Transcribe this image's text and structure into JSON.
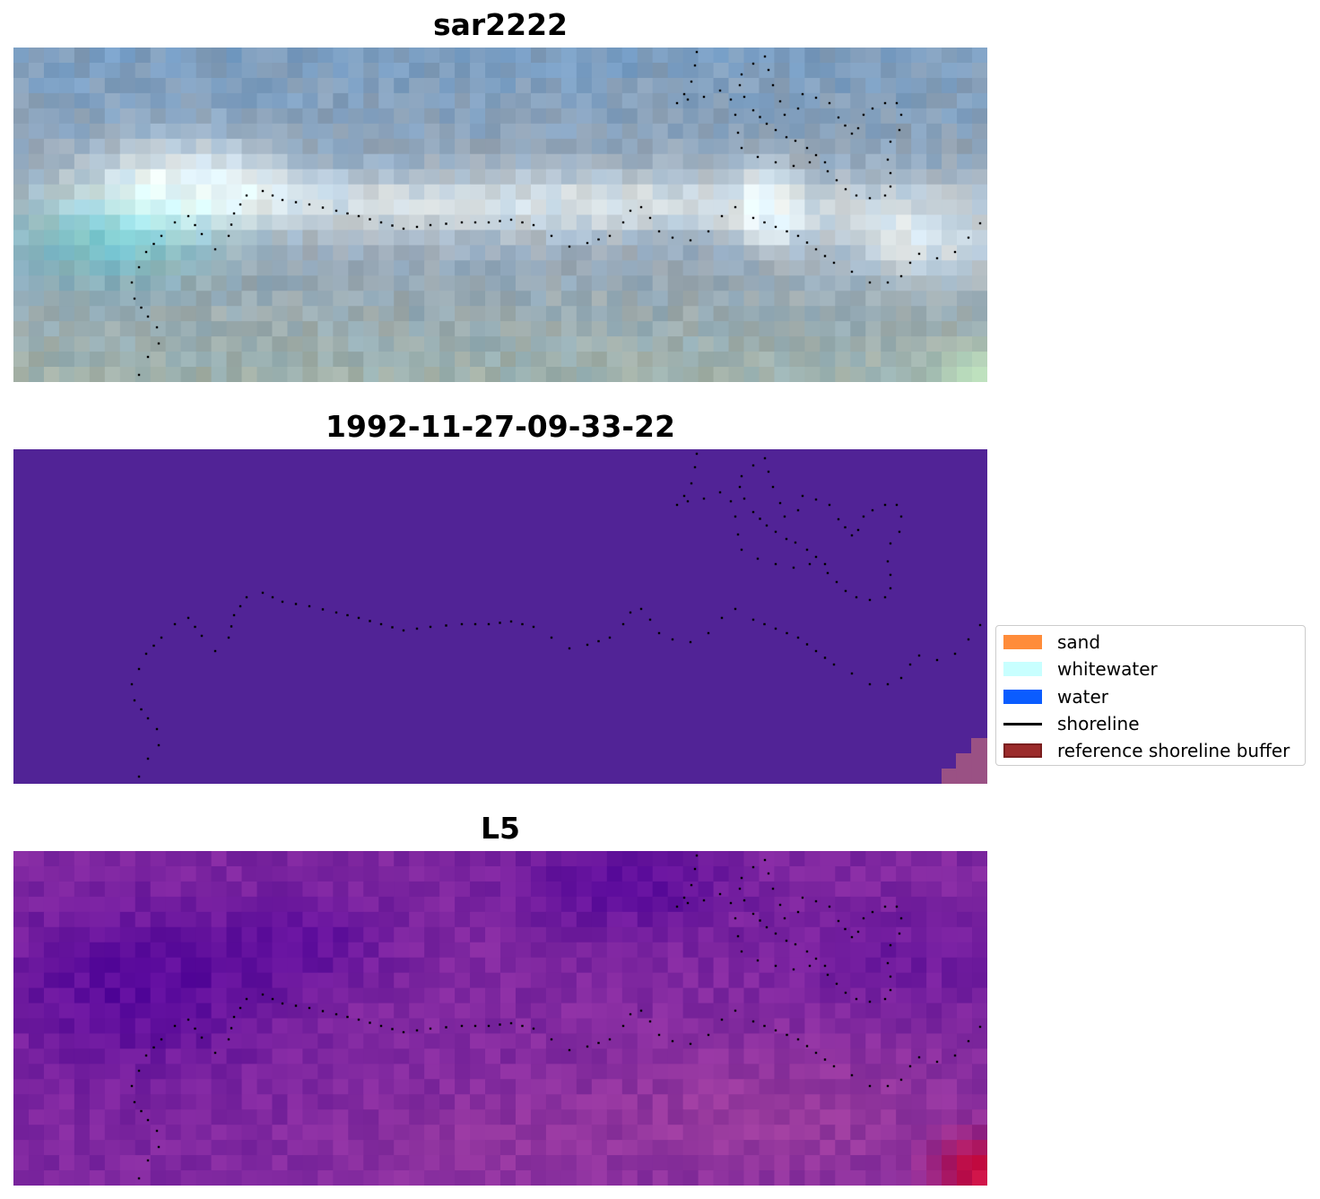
{
  "panels": [
    {
      "title": "sar2222",
      "kind": "rgb"
    },
    {
      "title": "1992-11-27-09-33-22",
      "kind": "classified"
    },
    {
      "title": "L5",
      "kind": "index"
    }
  ],
  "legend": {
    "items": [
      {
        "label": "sand",
        "color": "#ff8c3a",
        "kind": "patch"
      },
      {
        "label": "whitewater",
        "color": "#c8ffff",
        "kind": "patch"
      },
      {
        "label": "water",
        "color": "#0a5cff",
        "kind": "patch"
      },
      {
        "label": "shoreline",
        "color": "#000000",
        "kind": "line"
      },
      {
        "label": "reference shoreline buffer",
        "color": "#9b2a2a",
        "kind": "patch"
      }
    ]
  },
  "colors": {
    "classified_background": "#512396",
    "buffer_corner": "#9a5184",
    "shoreline_dots": "#000000"
  }
}
